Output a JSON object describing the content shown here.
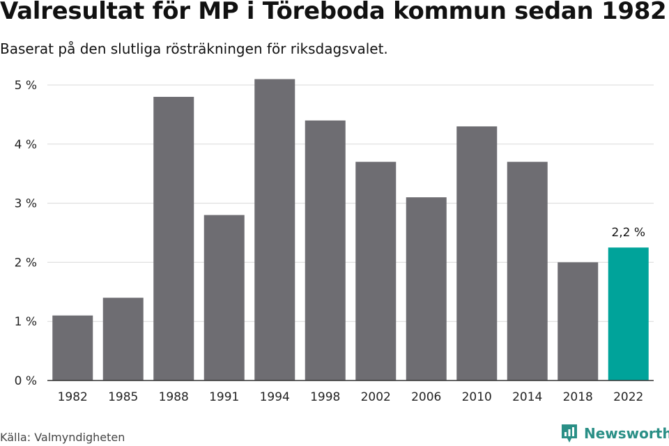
{
  "title": "Valresultat för MP i Töreboda kommun sedan 1982",
  "subtitle": "Baserat på den slutliga rösträkningen för riksdagsvalet.",
  "source": "Källa: Valmyndigheten",
  "brand": {
    "name": "Newsworthy",
    "icon": "newsworthy-logo-icon",
    "color": "#2a8f86"
  },
  "colors": {
    "bar": "#6e6d72",
    "highlight": "#00a39a",
    "grid": "#d9d9d9",
    "axis": "#333333"
  },
  "chart_data": {
    "type": "bar",
    "title": "Valresultat för MP i Töreboda kommun sedan 1982",
    "subtitle": "Baserat på den slutliga rösträkningen för riksdagsvalet.",
    "categories": [
      "1982",
      "1985",
      "1988",
      "1991",
      "1994",
      "1998",
      "2002",
      "2006",
      "2010",
      "2014",
      "2018",
      "2022"
    ],
    "values": [
      1.1,
      1.4,
      4.8,
      2.8,
      5.1,
      4.4,
      3.7,
      3.1,
      4.3,
      3.7,
      2.0,
      2.25
    ],
    "unit": "%",
    "ylim": [
      0,
      5
    ],
    "yticks": [
      "0 %",
      "1 %",
      "2 %",
      "3 %",
      "4 %",
      "5 %"
    ],
    "grid": true,
    "highlight": {
      "category": "2022",
      "label": "2,2 %"
    },
    "legend": "none"
  }
}
